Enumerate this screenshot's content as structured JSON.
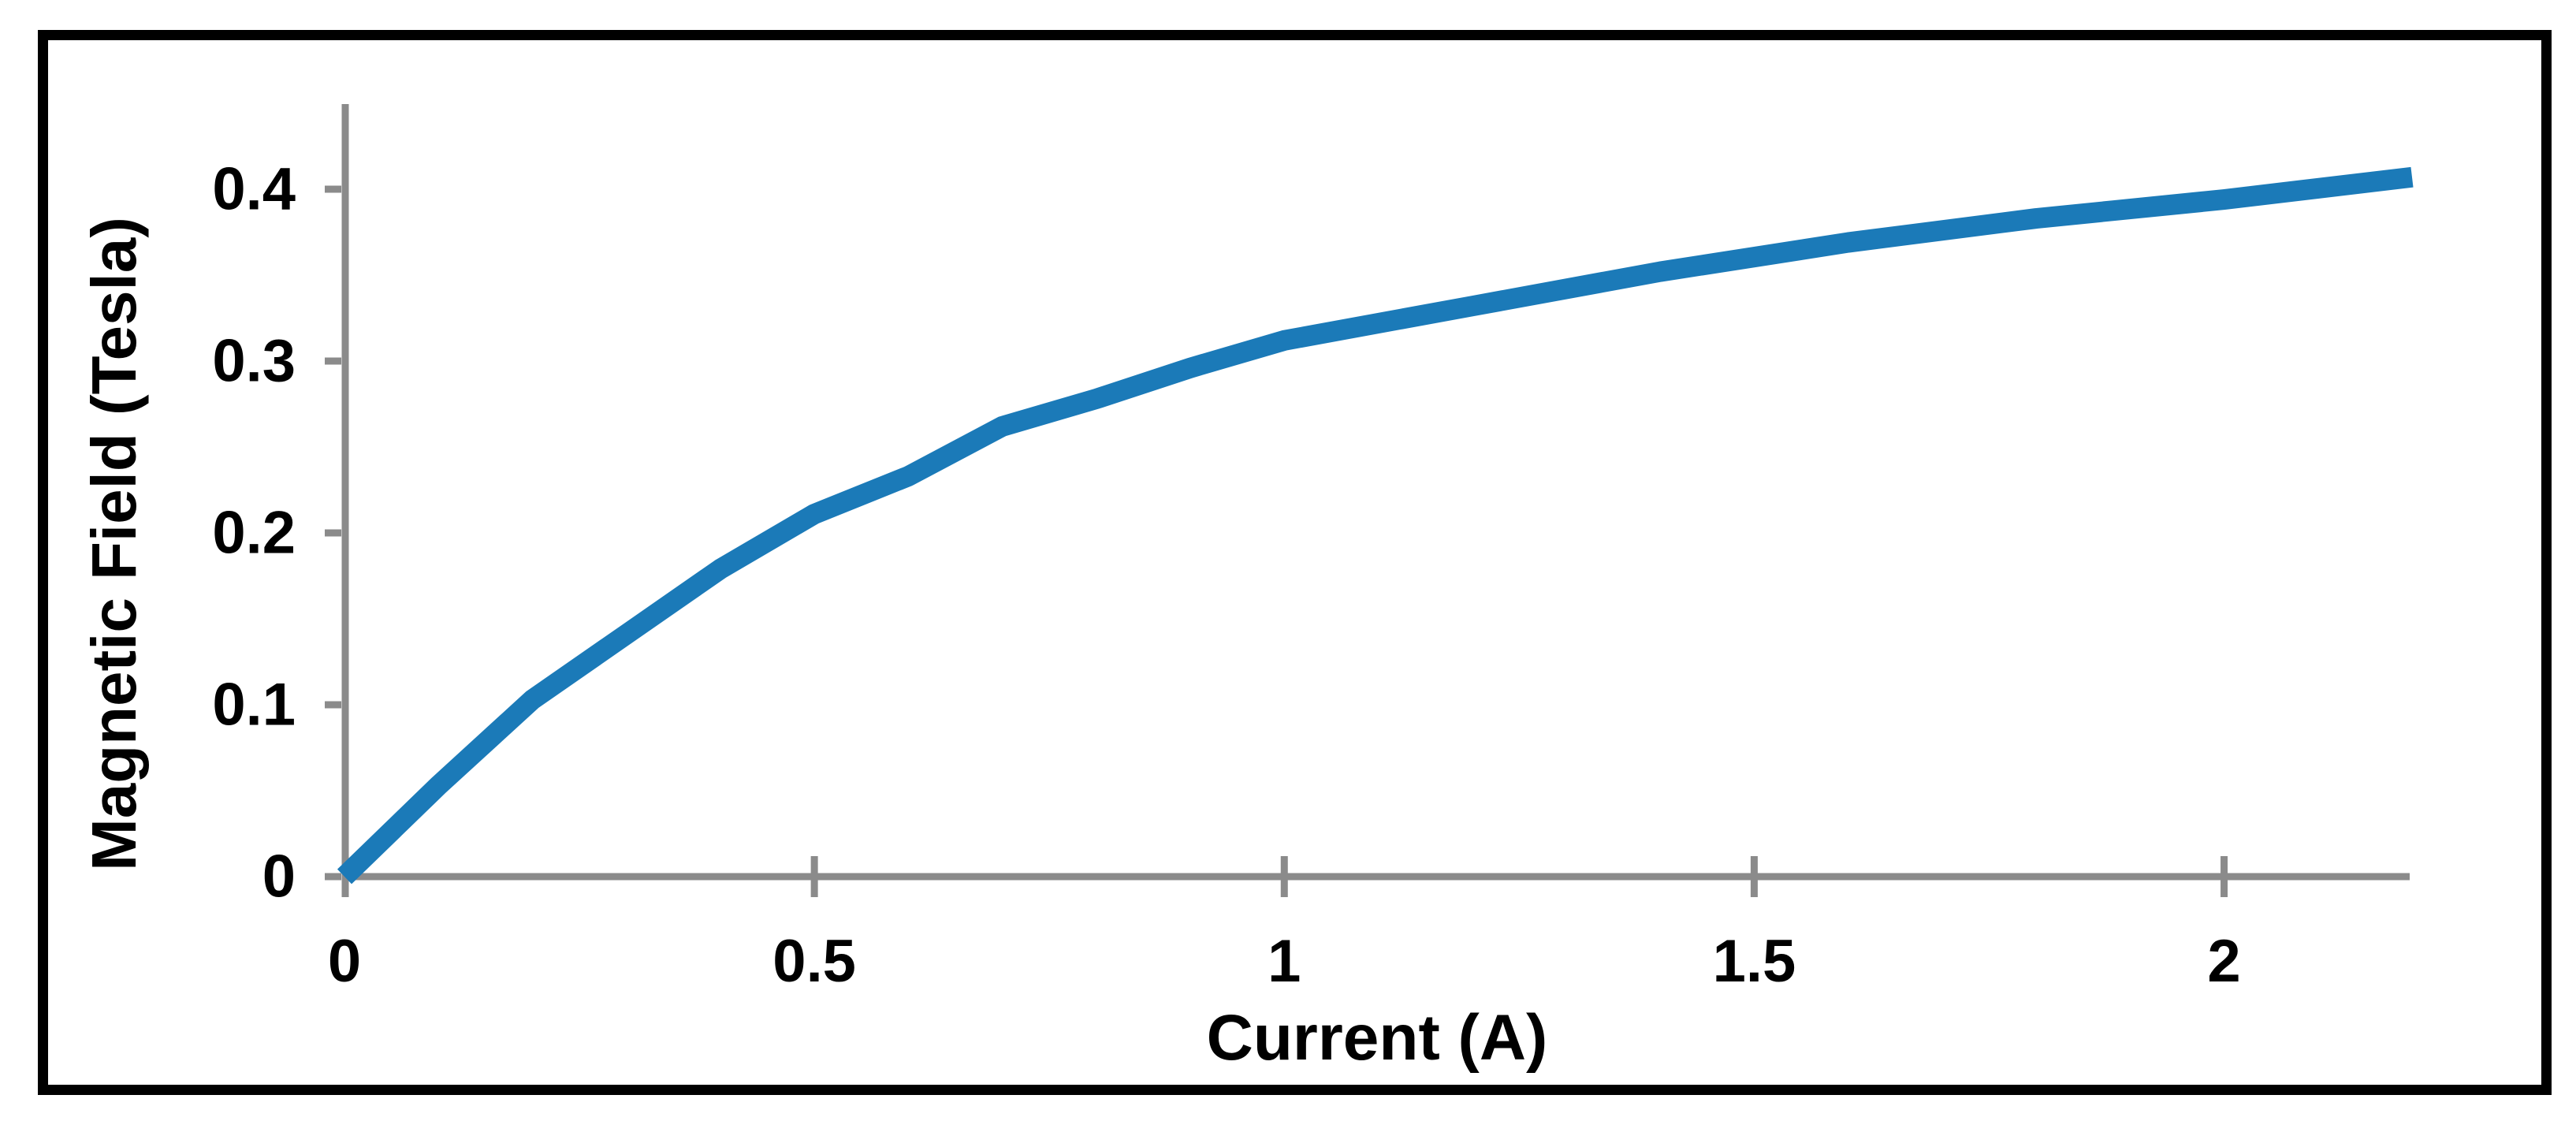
{
  "chart_data": {
    "type": "line",
    "title": "",
    "xlabel": "Current (A)",
    "ylabel": "Magnetic Field (Tesla)",
    "x": [
      0,
      0.1,
      0.2,
      0.3,
      0.4,
      0.5,
      0.6,
      0.7,
      0.8,
      0.9,
      1.0,
      1.2,
      1.4,
      1.6,
      1.8,
      2.0,
      2.2
    ],
    "series": [
      {
        "name": "Magnetic Field (Tesla)",
        "values": [
          0,
          0.053,
          0.103,
          0.141,
          0.179,
          0.211,
          0.233,
          0.262,
          0.278,
          0.296,
          0.312,
          0.332,
          0.352,
          0.369,
          0.383,
          0.394,
          0.407
        ]
      }
    ],
    "xlim": [
      0,
      2.2
    ],
    "ylim": [
      0,
      0.45
    ],
    "xticks": {
      "values": [
        0,
        0.5,
        1,
        1.5,
        2
      ],
      "labels": [
        "0",
        "0.5",
        "1",
        "1.5",
        "2"
      ]
    },
    "yticks": {
      "values": [
        0,
        0.1,
        0.2,
        0.3,
        0.4
      ],
      "labels": [
        "0",
        "0.1",
        "0.2",
        "0.3",
        "0.4"
      ]
    },
    "grid": false,
    "legend": "none",
    "colors": {
      "line": "#1b7ab8",
      "axis": "#8b8b8b",
      "text": "#000000",
      "frame": "#000000",
      "background": "#ffffff"
    }
  }
}
